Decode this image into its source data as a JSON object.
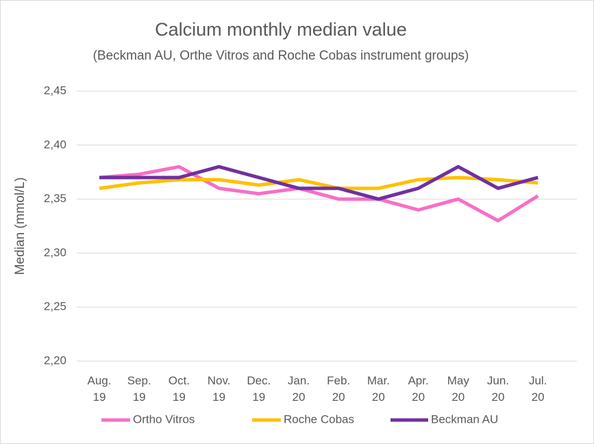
{
  "chart_data": {
    "type": "line",
    "title": "Calcium monthly median value",
    "subtitle": "(Beckman AU, Orthe Vitros and Roche Cobas instrument groups)",
    "y_label": "Median (mmol/L)",
    "categories": [
      "Aug. 19",
      "Sep. 19",
      "Oct. 19",
      "Nov. 19",
      "Dec. 19",
      "Jan. 20",
      "Feb. 20",
      "Mar. 20",
      "Apr. 20",
      "May 20",
      "Jun. 20",
      "Jul. 20"
    ],
    "series": [
      {
        "name": "Ortho Vitros",
        "color": "#f76fc6",
        "values": [
          2.37,
          2.373,
          2.38,
          2.36,
          2.355,
          2.36,
          2.35,
          2.35,
          2.34,
          2.35,
          2.33,
          2.353
        ]
      },
      {
        "name": "Roche Cobas",
        "color": "#ffc000",
        "values": [
          2.36,
          2.365,
          2.368,
          2.368,
          2.363,
          2.368,
          2.36,
          2.36,
          2.368,
          2.37,
          2.368,
          2.365
        ]
      },
      {
        "name": "Beckman AU",
        "color": "#7030a0",
        "values": [
          2.37,
          2.37,
          2.37,
          2.38,
          2.37,
          2.36,
          2.36,
          2.35,
          2.36,
          2.38,
          2.36,
          2.37
        ]
      }
    ],
    "ylim": [
      2.2,
      2.45
    ],
    "yticks": [
      {
        "value": 2.2,
        "label": "2,20"
      },
      {
        "value": 2.25,
        "label": "2,25"
      },
      {
        "value": 2.3,
        "label": "2,30"
      },
      {
        "value": 2.35,
        "label": "2,35"
      },
      {
        "value": 2.4,
        "label": "2,40"
      },
      {
        "value": 2.45,
        "label": "2,45"
      }
    ],
    "grid": true,
    "legend": "bottom"
  }
}
